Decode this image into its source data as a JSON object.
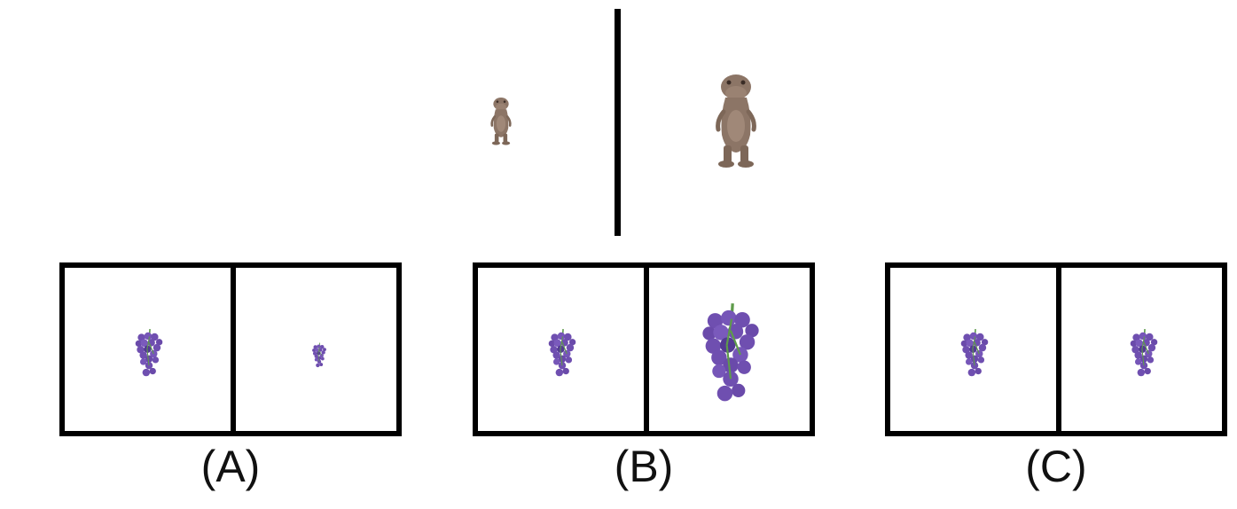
{
  "reference": {
    "left_item": "small-dinosaur",
    "right_item": "large-dinosaur",
    "dino_color": "#8c7566"
  },
  "options": [
    {
      "label": "(A)",
      "left": "medium-grapes",
      "right": "small-grapes"
    },
    {
      "label": "(B)",
      "left": "medium-grapes",
      "right": "large-grapes"
    },
    {
      "label": "(C)",
      "left": "medium-grapes",
      "right": "medium-grapes"
    }
  ],
  "colors": {
    "grape": "#6f4fb0",
    "grape_dark": "#533a93",
    "stem": "#5e9b4a"
  }
}
